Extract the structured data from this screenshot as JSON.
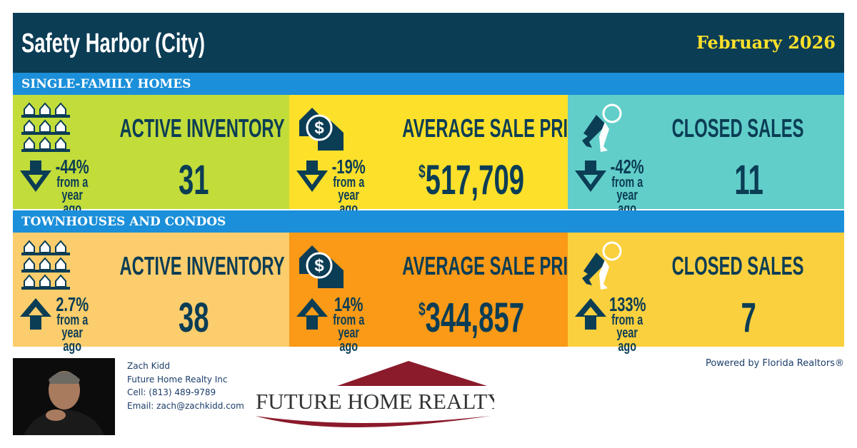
{
  "header": {
    "title": "Safety Harbor (City)",
    "date": "February 2026"
  },
  "sections": [
    {
      "label": "SINGLE-FAMILY HOMES",
      "cards": [
        {
          "icon": "houses-icon",
          "title": "ACTIVE INVENTORY",
          "direction": "down",
          "change": "-44%",
          "change_note": [
            "from a",
            "year ago"
          ],
          "value_prefix": "",
          "value": "31",
          "color": "#c2dc3a"
        },
        {
          "icon": "house-dollar-icon",
          "title": "AVERAGE SALE PRICE",
          "direction": "down",
          "change": "-19%",
          "change_note": [
            "from a",
            "year ago"
          ],
          "value_prefix": "$",
          "value": "517,709",
          "color": "#fde02a"
        },
        {
          "icon": "keys-icon",
          "title": "CLOSED SALES",
          "direction": "down",
          "change": "-42%",
          "change_note": [
            "from a",
            "year ago"
          ],
          "value_prefix": "",
          "value": "11",
          "color": "#62cec9"
        }
      ]
    },
    {
      "label": "TOWNHOUSES AND CONDOS",
      "cards": [
        {
          "icon": "houses-icon",
          "title": "ACTIVE INVENTORY",
          "direction": "up",
          "change": "2.7%",
          "change_note": [
            "from a",
            "year ago"
          ],
          "value_prefix": "",
          "value": "38",
          "color": "#fccd6c"
        },
        {
          "icon": "house-dollar-icon",
          "title": "AVERAGE SALE PRICE",
          "direction": "up",
          "change": "14%",
          "change_note": [
            "from a",
            "year ago"
          ],
          "value_prefix": "$",
          "value": "344,857",
          "color": "#fa9a16"
        },
        {
          "icon": "keys-icon",
          "title": "CLOSED SALES",
          "direction": "up",
          "change": "133%",
          "change_note": [
            "from a",
            "year ago"
          ],
          "value_prefix": "",
          "value": "7",
          "color": "#fbd03e"
        }
      ]
    }
  ],
  "agent": {
    "name": "Zach Kidd",
    "company": "Future Home Realty Inc",
    "cell": "Cell: (813) 489-9789",
    "email": "Email: zach@zachkidd.com"
  },
  "logo": {
    "text": "FUTURE HOME REALTY",
    "color": "#8b1a2b"
  },
  "powered_by": "Powered by Florida Realtors®",
  "colors": {
    "dark": "#0b3d55",
    "band": "#1b8fd9",
    "date": "#fde02a"
  }
}
